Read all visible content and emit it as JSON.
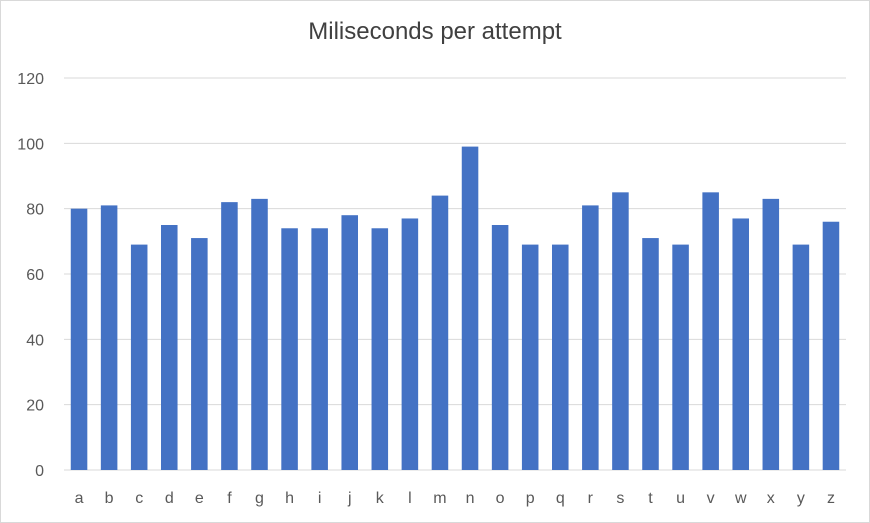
{
  "chart_data": {
    "type": "bar",
    "title": "Miliseconds per attempt",
    "xlabel": "",
    "ylabel": "",
    "categories": [
      "a",
      "b",
      "c",
      "d",
      "e",
      "f",
      "g",
      "h",
      "i",
      "j",
      "k",
      "l",
      "m",
      "n",
      "o",
      "p",
      "q",
      "r",
      "s",
      "t",
      "u",
      "v",
      "w",
      "x",
      "y",
      "z"
    ],
    "values": [
      80,
      81,
      69,
      75,
      71,
      82,
      83,
      74,
      74,
      78,
      74,
      77,
      84,
      99,
      75,
      69,
      69,
      81,
      85,
      71,
      69,
      85,
      77,
      83,
      69,
      76
    ],
    "ylim": [
      0,
      120
    ],
    "yticks": [
      0,
      20,
      40,
      60,
      80,
      100,
      120
    ],
    "grid": true,
    "legend": "none",
    "bar_color": "#4472c4",
    "grid_color": "#d9d9d9"
  }
}
